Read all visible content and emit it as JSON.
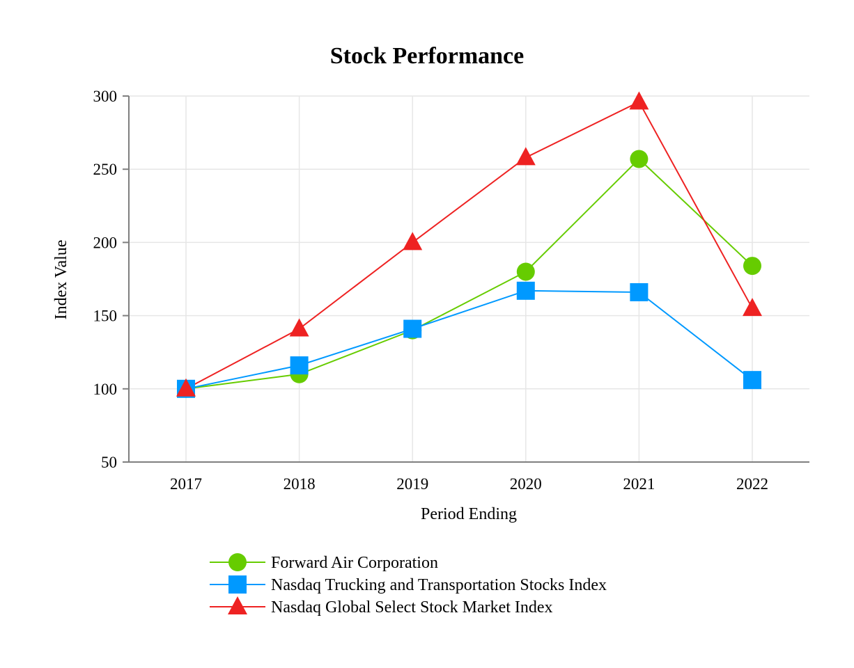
{
  "chart_data": {
    "type": "line",
    "title": "Stock Performance",
    "xlabel": "Period Ending",
    "ylabel": "Index Value",
    "categories": [
      "2017",
      "2018",
      "2019",
      "2020",
      "2021",
      "2022"
    ],
    "ylim": [
      50,
      300
    ],
    "yticks": [
      50,
      100,
      150,
      200,
      250,
      300
    ],
    "grid": true,
    "legend_position": "bottom",
    "series": [
      {
        "name": "Forward Air Corporation",
        "color": "#66cc00",
        "marker": "circle",
        "values": [
          100,
          110,
          140,
          180,
          257,
          184
        ]
      },
      {
        "name": "Nasdaq Trucking and Transportation Stocks Index",
        "color": "#0099ff",
        "marker": "square",
        "values": [
          100,
          116,
          141,
          167,
          166,
          106
        ]
      },
      {
        "name": "Nasdaq Global Select Stock Market Index",
        "color": "#ee2222",
        "marker": "triangle",
        "values": [
          100,
          141,
          200,
          258,
          296,
          155
        ]
      }
    ]
  }
}
